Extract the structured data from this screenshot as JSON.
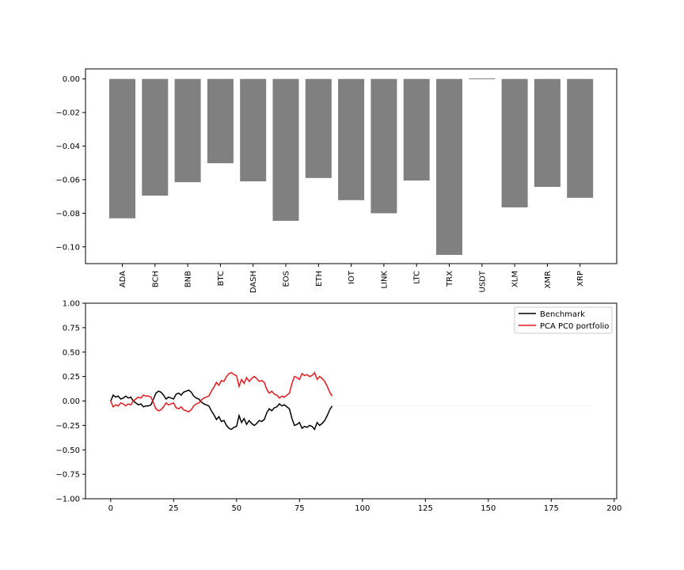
{
  "chart_data": [
    {
      "type": "bar",
      "categories": [
        "ADA",
        "BCH",
        "BNB",
        "BTC",
        "DASH",
        "EOS",
        "ETH",
        "IOT",
        "LINK",
        "LTC",
        "TRX",
        "USDT",
        "XLM",
        "XMR",
        "XRP"
      ],
      "values": [
        -0.083,
        -0.0695,
        -0.0615,
        -0.0502,
        -0.061,
        -0.0845,
        -0.059,
        -0.0722,
        -0.08,
        -0.0605,
        -0.1048,
        0.0003,
        -0.0765,
        -0.0643,
        -0.0708
      ],
      "ylim": [
        -0.11,
        0.006
      ],
      "yticks": [
        "0.00",
        "−0.02",
        "−0.04",
        "−0.06",
        "−0.08",
        "−0.10"
      ],
      "ytick_values": [
        0.0,
        -0.02,
        -0.04,
        -0.06,
        -0.08,
        -0.1
      ],
      "bar_color": "#808080",
      "title": "",
      "xlabel": "",
      "ylabel": ""
    },
    {
      "type": "line",
      "xlim": [
        -10,
        201
      ],
      "ylim": [
        -1.0,
        1.0
      ],
      "xticks": [
        "0",
        "25",
        "50",
        "75",
        "100",
        "125",
        "150",
        "175",
        "200"
      ],
      "xtick_values": [
        0,
        25,
        50,
        75,
        100,
        125,
        150,
        175,
        200
      ],
      "yticks": [
        "1.00",
        "0.75",
        "0.50",
        "0.25",
        "0.00",
        "−0.25",
        "−0.50",
        "−0.75",
        "−1.00"
      ],
      "ytick_values": [
        1.0,
        0.75,
        0.5,
        0.25,
        0.0,
        -0.25,
        -0.5,
        -0.75,
        -1.0
      ],
      "legend_position": "top-right",
      "series": [
        {
          "name": "Benchmark",
          "color": "#000000",
          "x": [
            0,
            1,
            2,
            3,
            4,
            5,
            6,
            7,
            8,
            9,
            10,
            11,
            12,
            13,
            14,
            15,
            16,
            17,
            18,
            19,
            20,
            21,
            22,
            23,
            24,
            25,
            26,
            27,
            28,
            29,
            30,
            31,
            32,
            33,
            34,
            35,
            36,
            37,
            38,
            39,
            40,
            41,
            42,
            43,
            44,
            45,
            46,
            47,
            48,
            49,
            50,
            51,
            52,
            53,
            54,
            55,
            56,
            57,
            58,
            59,
            60,
            61,
            62,
            63,
            64,
            65,
            66,
            67,
            68,
            69,
            70,
            71,
            72,
            73,
            74,
            75,
            76,
            77,
            78,
            79,
            80,
            81,
            82,
            83,
            84,
            85,
            86,
            87,
            88
          ],
          "y": [
            0.0,
            0.06,
            0.04,
            0.05,
            0.02,
            0.03,
            0.05,
            0.03,
            0.04,
            0.0,
            -0.02,
            -0.04,
            -0.03,
            -0.06,
            -0.05,
            -0.05,
            -0.04,
            0.02,
            0.08,
            0.1,
            0.09,
            0.06,
            0.02,
            0.04,
            0.03,
            0.02,
            0.07,
            0.08,
            0.06,
            0.09,
            0.1,
            0.11,
            0.09,
            0.05,
            0.03,
            0.02,
            -0.01,
            -0.03,
            -0.04,
            -0.05,
            -0.1,
            -0.14,
            -0.19,
            -0.16,
            -0.21,
            -0.2,
            -0.25,
            -0.28,
            -0.29,
            -0.27,
            -0.26,
            -0.15,
            -0.22,
            -0.18,
            -0.24,
            -0.2,
            -0.23,
            -0.25,
            -0.23,
            -0.2,
            -0.21,
            -0.19,
            -0.12,
            -0.08,
            -0.1,
            -0.07,
            -0.06,
            -0.03,
            -0.05,
            -0.04,
            -0.06,
            -0.08,
            -0.18,
            -0.25,
            -0.24,
            -0.22,
            -0.28,
            -0.26,
            -0.27,
            -0.25,
            -0.26,
            -0.29,
            -0.22,
            -0.25,
            -0.23,
            -0.2,
            -0.15,
            -0.09,
            -0.05
          ],
          "x_end": 88
        },
        {
          "name": "PCA PC0 portfolio",
          "color": "#e41a1c",
          "x": [
            0,
            1,
            2,
            3,
            4,
            5,
            6,
            7,
            8,
            9,
            10,
            11,
            12,
            13,
            14,
            15,
            16,
            17,
            18,
            19,
            20,
            21,
            22,
            23,
            24,
            25,
            26,
            27,
            28,
            29,
            30,
            31,
            32,
            33,
            34,
            35,
            36,
            37,
            38,
            39,
            40,
            41,
            42,
            43,
            44,
            45,
            46,
            47,
            48,
            49,
            50,
            51,
            52,
            53,
            54,
            55,
            56,
            57,
            58,
            59,
            60,
            61,
            62,
            63,
            64,
            65,
            66,
            67,
            68,
            69,
            70,
            71,
            72,
            73,
            74,
            75,
            76,
            77,
            78,
            79,
            80,
            81,
            82,
            83,
            84,
            85,
            86,
            87,
            88
          ],
          "y": [
            0.0,
            -0.06,
            -0.04,
            -0.05,
            -0.02,
            -0.03,
            -0.05,
            -0.03,
            -0.04,
            0.0,
            0.02,
            0.04,
            0.03,
            0.06,
            0.05,
            0.05,
            0.04,
            -0.02,
            -0.08,
            -0.1,
            -0.09,
            -0.06,
            -0.02,
            -0.04,
            -0.03,
            -0.02,
            -0.07,
            -0.08,
            -0.06,
            -0.09,
            -0.1,
            -0.11,
            -0.09,
            -0.05,
            -0.03,
            -0.02,
            0.01,
            0.03,
            0.04,
            0.05,
            0.1,
            0.14,
            0.19,
            0.16,
            0.21,
            0.2,
            0.25,
            0.28,
            0.29,
            0.27,
            0.26,
            0.15,
            0.22,
            0.18,
            0.24,
            0.2,
            0.23,
            0.25,
            0.23,
            0.2,
            0.21,
            0.19,
            0.12,
            0.08,
            0.1,
            0.07,
            0.06,
            0.03,
            0.05,
            0.04,
            0.06,
            0.08,
            0.18,
            0.25,
            0.24,
            0.22,
            0.28,
            0.26,
            0.27,
            0.25,
            0.26,
            0.29,
            0.22,
            0.25,
            0.23,
            0.2,
            0.15,
            0.09,
            0.05
          ],
          "x_end": 88
        },
        {
          "name": "",
          "color": "#f0f0f0",
          "x": [
            88,
            191
          ],
          "y": [
            -0.05,
            -0.05
          ]
        }
      ]
    }
  ]
}
